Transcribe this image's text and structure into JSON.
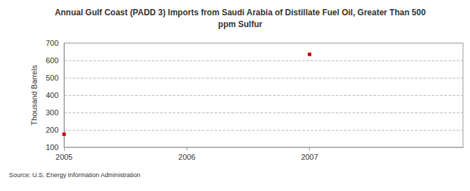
{
  "chart_data": {
    "type": "line",
    "title": "Annual Gulf Coast (PADD 3) Imports from Saudi Arabia of Distillate Fuel Oil, Greater Than 500\nppm Sulfur",
    "y_label": "Thousand Barrels",
    "source": "Source: U.S. Energy Information Administration",
    "x": [
      2005,
      2006,
      2007
    ],
    "values": [
      175,
      null,
      635
    ],
    "color": "#cc0000",
    "marker": "square",
    "line_style": "solid",
    "xlim": [
      2005,
      2008.25
    ],
    "xticks": [
      2005,
      2006,
      2007
    ],
    "ylim": [
      100,
      700
    ],
    "yticks": [
      100,
      200,
      300,
      400,
      500,
      600,
      700
    ],
    "grid": true
  }
}
